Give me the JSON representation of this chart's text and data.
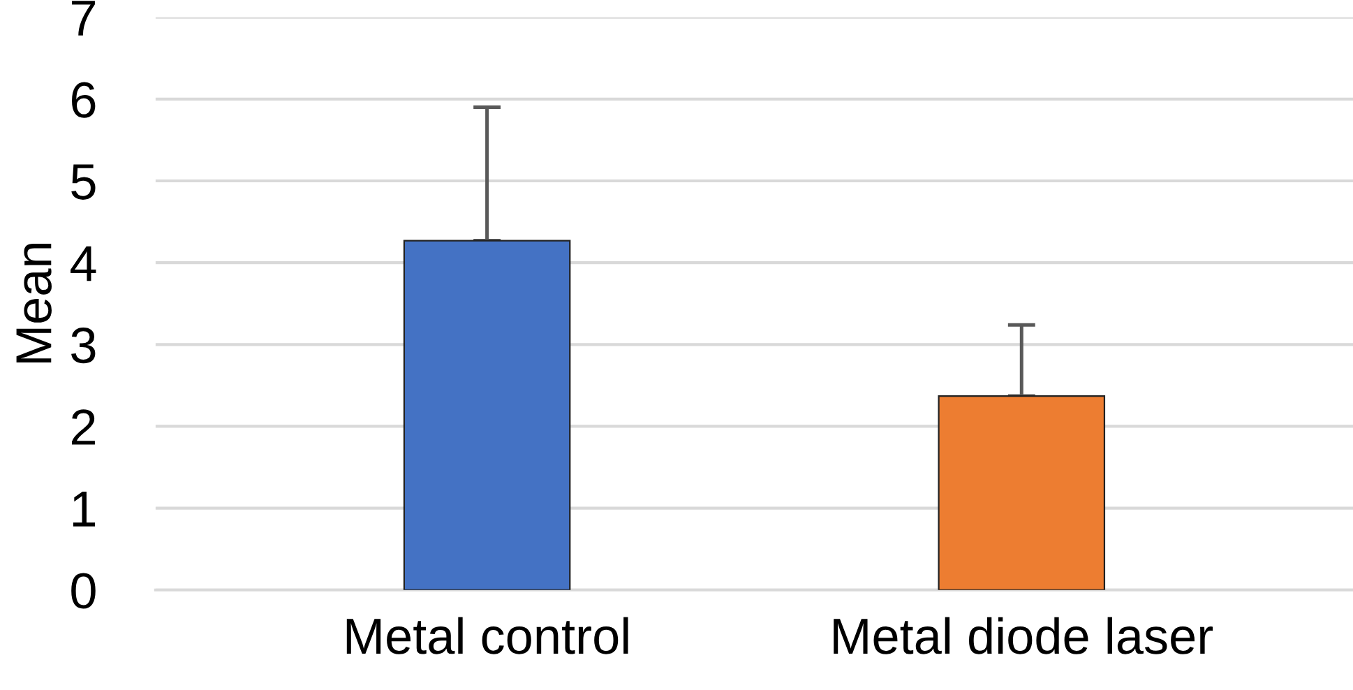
{
  "chart_data": {
    "type": "bar",
    "ylabel": "Mean",
    "categories": [
      "Metal control",
      "Metal diode laser"
    ],
    "values": [
      4.27,
      2.37
    ],
    "colors": [
      "#4472c4",
      "#ed7d31"
    ],
    "errors": [
      [
        4.27,
        5.9
      ],
      [
        2.37,
        3.24
      ]
    ],
    "ylim": [
      0,
      7
    ],
    "yticks": [
      0,
      1,
      2,
      3,
      4,
      5,
      6,
      7
    ],
    "grid": "y"
  }
}
